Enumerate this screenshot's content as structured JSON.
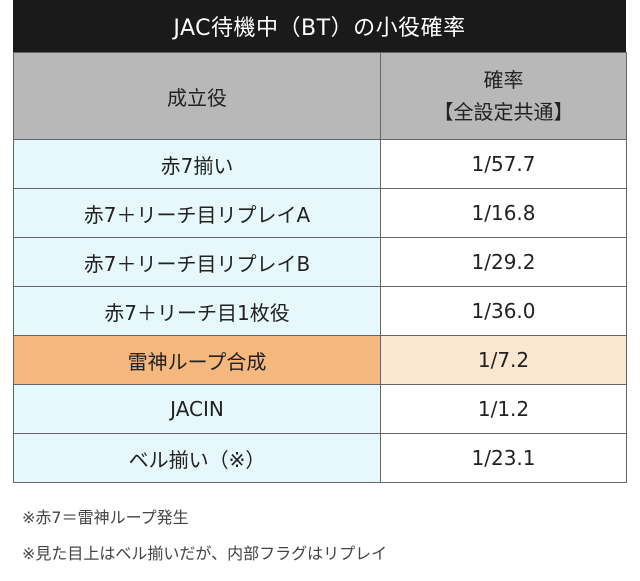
{
  "table": {
    "title": "JAC待機中（BT）の小役確率",
    "header": {
      "role_label": "成立役",
      "prob_label": "確率",
      "prob_sublabel": "【全設定共通】"
    },
    "rows": [
      {
        "role": "赤7揃い",
        "prob": "1/57.7"
      },
      {
        "role": "赤7＋リーチ目リプレイA",
        "prob": "1/16.8"
      },
      {
        "role": "赤7＋リーチ目リプレイB",
        "prob": "1/29.2"
      },
      {
        "role": "赤7＋リーチ目1枚役",
        "prob": "1/36.0"
      },
      {
        "role": "雷神ループ合成",
        "prob": "1/7.2"
      },
      {
        "role": "JACIN",
        "prob": "1/1.2"
      },
      {
        "role": "ベル揃い（※）",
        "prob": "1/23.1"
      }
    ]
  },
  "notes": [
    "※赤7＝雷神ループ発生",
    "※見た目上はベル揃いだが、内部フラグはリプレイ"
  ],
  "colors": {
    "title_bg": "#1a1a1a",
    "header_bg": "#b8b8b8",
    "role_bg": "#e6f8fb",
    "highlight_role_bg": "#f4b77d",
    "highlight_prob_bg": "#fbe6d1"
  }
}
